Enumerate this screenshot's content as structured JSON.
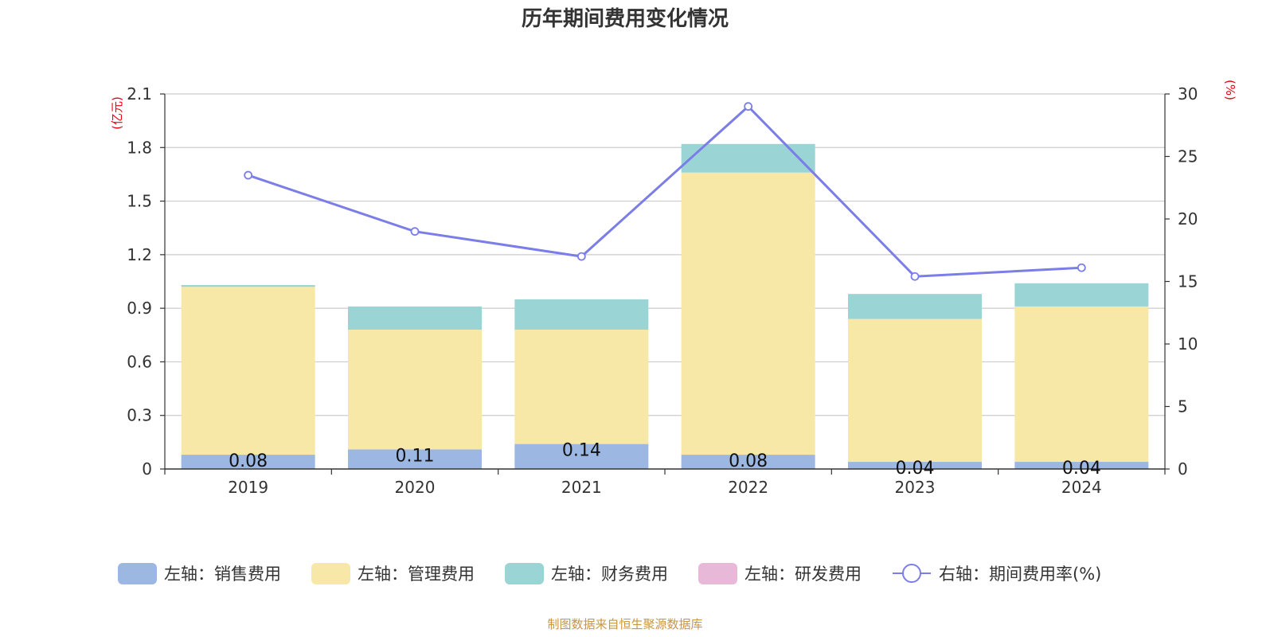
{
  "chart_data": {
    "type": "bar",
    "stacked": true,
    "title": "历年期间费用变化情况",
    "categories": [
      "2019",
      "2020",
      "2021",
      "2022",
      "2023",
      "2024"
    ],
    "left_axis": {
      "unit_label": "(亿元)",
      "range": [
        0,
        2.1
      ],
      "ticks": [
        "0",
        "0.3",
        "0.6",
        "0.9",
        "1.2",
        "1.5",
        "1.8",
        "2.1"
      ]
    },
    "right_axis": {
      "unit_label": "(%)",
      "range": [
        0,
        30
      ],
      "ticks": [
        "0",
        "5",
        "10",
        "15",
        "20",
        "25",
        "30"
      ]
    },
    "series": [
      {
        "name": "左轴：销售费用",
        "axis": "left",
        "color": "#9cb8e2",
        "values": [
          0.08,
          0.11,
          0.14,
          0.08,
          0.04,
          0.04
        ],
        "labels": [
          "0.08",
          "0.11",
          "0.14",
          "0.08",
          "0.04",
          "0.04"
        ]
      },
      {
        "name": "左轴：管理费用",
        "axis": "left",
        "color": "#f8e8a8",
        "values": [
          0.94,
          0.67,
          0.64,
          1.58,
          0.8,
          0.87
        ]
      },
      {
        "name": "左轴：财务费用",
        "axis": "left",
        "color": "#9bd4d5",
        "values": [
          0.01,
          0.13,
          0.17,
          0.16,
          0.14,
          0.13
        ]
      },
      {
        "name": "左轴：研发费用",
        "axis": "left",
        "color": "#e8b8d8",
        "values": [
          0,
          0,
          0,
          0,
          0,
          0
        ]
      },
      {
        "name": "右轴：期间费用率(%)",
        "axis": "right",
        "type": "line",
        "color": "#7b7ee8",
        "values": [
          23.5,
          19.0,
          17.0,
          29.0,
          15.4,
          16.1
        ]
      }
    ],
    "grid": true,
    "legend_position": "bottom"
  },
  "source_note": "制图数据来自恒生聚源数据库"
}
